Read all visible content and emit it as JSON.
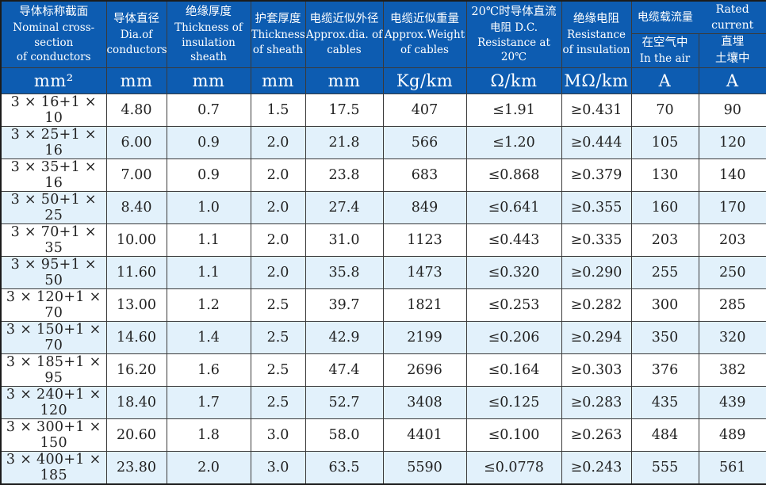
{
  "table": {
    "header": {
      "cols": [
        {
          "zh": "导体标称截面",
          "en1": "Nominal cross-section",
          "en2": "of conductors",
          "unit": "mm²"
        },
        {
          "zh": "导体直径",
          "en1": "Dia.of",
          "en2": "conductors",
          "unit": "mm"
        },
        {
          "zh": "绝缘厚度",
          "en1": "Thickness of",
          "en2": "insulation sheath",
          "unit": "mm"
        },
        {
          "zh": "护套厚度",
          "en1": "Thickness",
          "en2": "of sheath",
          "unit": "mm"
        },
        {
          "zh": "电缆近似外径",
          "en1": "Approx.dia. of",
          "en2": "cables",
          "unit": "mm"
        },
        {
          "zh": "电缆近似重量",
          "en1": "Approx.Weight",
          "en2": "of cables",
          "unit": "Kg/km"
        },
        {
          "zh": "20℃时导体直流",
          "en1": "电阻 D.C.",
          "en2": "Resistance at 20℃",
          "unit": "Ω/km"
        },
        {
          "zh": "绝缘电阻",
          "en1": "Resistance",
          "en2": "of insulation",
          "unit": "MΩ/km"
        }
      ],
      "rated_group": {
        "zh": "电缆载流量",
        "en": "Rated current"
      },
      "rated_sub": [
        {
          "line1": "在空气中",
          "line2": "In the air",
          "unit": "A"
        },
        {
          "line1": "直埋",
          "line2": "土壤中",
          "unit": "A"
        }
      ]
    },
    "rows": [
      [
        "3 × 16+1 × 10",
        "4.80",
        "0.7",
        "1.5",
        "17.5",
        "407",
        "≤1.91",
        "≥0.431",
        "70",
        "90"
      ],
      [
        "3 × 25+1 × 16",
        "6.00",
        "0.9",
        "2.0",
        "21.8",
        "566",
        "≤1.20",
        "≥0.444",
        "105",
        "120"
      ],
      [
        "3 × 35+1 × 16",
        "7.00",
        "0.9",
        "2.0",
        "23.8",
        "683",
        "≤0.868",
        "≥0.379",
        "130",
        "140"
      ],
      [
        "3 × 50+1 × 25",
        "8.40",
        "1.0",
        "2.0",
        "27.4",
        "849",
        "≤0.641",
        "≥0.355",
        "160",
        "170"
      ],
      [
        "3 × 70+1 × 35",
        "10.00",
        "1.1",
        "2.0",
        "31.0",
        "1123",
        "≤0.443",
        "≥0.335",
        "203",
        "203"
      ],
      [
        "3 × 95+1 × 50",
        "11.60",
        "1.1",
        "2.0",
        "35.8",
        "1473",
        "≤0.320",
        "≥0.290",
        "255",
        "250"
      ],
      [
        "3 × 120+1 × 70",
        "13.00",
        "1.2",
        "2.5",
        "39.7",
        "1821",
        "≤0.253",
        "≥0.282",
        "300",
        "285"
      ],
      [
        "3 × 150+1 × 70",
        "14.60",
        "1.4",
        "2.5",
        "42.9",
        "2199",
        "≤0.206",
        "≥0.294",
        "350",
        "320"
      ],
      [
        "3 × 185+1 × 95",
        "16.20",
        "1.6",
        "2.5",
        "47.4",
        "2696",
        "≤0.164",
        "≥0.303",
        "376",
        "382"
      ],
      [
        "3 × 240+1 × 120",
        "18.40",
        "1.7",
        "2.5",
        "52.7",
        "3408",
        "≤0.125",
        "≥0.283",
        "435",
        "439"
      ],
      [
        "3 × 300+1 × 150",
        "20.60",
        "1.8",
        "3.0",
        "58.0",
        "4401",
        "≤0.100",
        "≥0.263",
        "484",
        "489"
      ],
      [
        "3 × 400+1 × 185",
        "23.80",
        "2.0",
        "3.0",
        "63.5",
        "5590",
        "≤0.0778",
        "≥0.243",
        "555",
        "561"
      ]
    ]
  },
  "colors": {
    "header_blue": "#0d5cb1",
    "stripe_blue": "#e2f1fb",
    "grid": "#3a3a3a"
  }
}
